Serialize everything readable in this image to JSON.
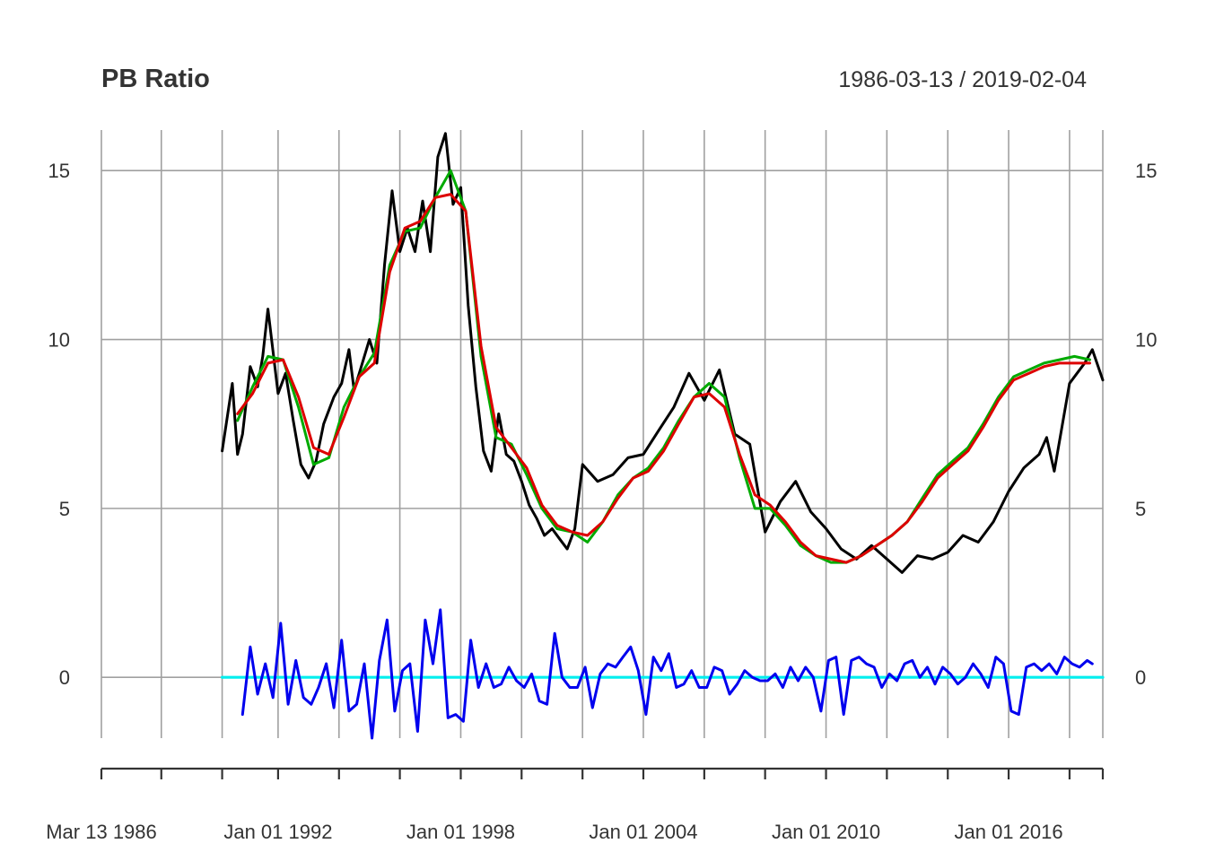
{
  "chart_data": {
    "type": "line",
    "title": "PB Ratio",
    "date_range": "1986-03-13 / 2019-02-04",
    "x_start": "1986-03-13",
    "x_end": "2019-02-04",
    "xlim": [
      "1986-03-13",
      "2019-02-04"
    ],
    "ylim": [
      -1.8,
      16.2
    ],
    "y_ticks": [
      0,
      5,
      10,
      15
    ],
    "y_tick_labels": [
      "0",
      "5",
      "10",
      "15"
    ],
    "x_tick_dates": [
      "1986-03-13",
      "1992-01-01",
      "1998-01-01",
      "2004-01-01",
      "2010-01-01",
      "2016-01-01"
    ],
    "x_tick_labels": [
      "Mar 13 1986",
      "Jan 01 1992",
      "Jan 01 1998",
      "Jan 01 2004",
      "Jan 01 2010",
      "Jan 01 2016"
    ],
    "x_minor_tick_dates": [
      "1988-03-01",
      "1990-03-01",
      "1994-01-01",
      "1996-01-01",
      "2000-01-01",
      "2002-01-01",
      "2006-01-01",
      "2008-01-01",
      "2012-01-01",
      "2014-01-01",
      "2018-01-01",
      "2019-02-04"
    ],
    "grid": true,
    "grid_x_dates": [
      "1986-03-13",
      "1988-03-01",
      "1990-03-01",
      "1992-01-01",
      "1994-01-01",
      "1996-01-01",
      "1998-01-01",
      "2000-01-01",
      "2002-01-01",
      "2004-01-01",
      "2006-01-01",
      "2008-01-01",
      "2010-01-01",
      "2012-01-01",
      "2014-01-01",
      "2016-01-01",
      "2018-01-01",
      "2019-02-04"
    ],
    "series": [
      {
        "color": "#000000",
        "x": [
          "1990-03-01",
          "1990-07-01",
          "1990-09-01",
          "1990-11-01",
          "1991-02-01",
          "1991-05-01",
          "1991-07-01",
          "1991-09-01",
          "1992-01-01",
          "1992-04-01",
          "1992-07-01",
          "1992-10-01",
          "1993-01-01",
          "1993-04-01",
          "1993-07-01",
          "1993-11-01",
          "1994-02-01",
          "1994-05-01",
          "1994-07-01",
          "1994-09-01",
          "1995-01-01",
          "1995-04-01",
          "1995-07-01",
          "1995-10-01",
          "1996-01-01",
          "1996-04-01",
          "1996-07-01",
          "1996-10-01",
          "1997-01-01",
          "1997-04-01",
          "1997-07-01",
          "1997-10-01",
          "1998-01-01",
          "1998-04-01",
          "1998-07-01",
          "1998-10-01",
          "1999-01-01",
          "1999-04-01",
          "1999-07-01",
          "1999-10-01",
          "2000-01-01",
          "2000-04-01",
          "2000-07-01",
          "2000-10-01",
          "2001-01-01",
          "2001-04-01",
          "2001-07-01",
          "2001-10-01",
          "2002-01-01",
          "2002-07-01",
          "2003-01-01",
          "2003-07-01",
          "2004-01-01",
          "2004-07-01",
          "2005-01-01",
          "2005-07-01",
          "2006-01-01",
          "2006-07-01",
          "2007-01-01",
          "2007-07-01",
          "2008-01-01",
          "2008-07-01",
          "2009-01-01",
          "2009-07-01",
          "2010-01-01",
          "2010-07-01",
          "2011-01-01",
          "2011-07-01",
          "2012-01-01",
          "2012-07-01",
          "2013-01-01",
          "2013-07-01",
          "2014-01-01",
          "2014-07-01",
          "2015-01-01",
          "2015-07-01",
          "2016-01-01",
          "2016-07-01",
          "2017-01-01",
          "2017-04-01",
          "2017-07-01",
          "2017-10-01",
          "2018-01-01",
          "2018-04-01",
          "2018-07-01",
          "2018-10-01",
          "2019-02-04"
        ],
        "values": [
          6.7,
          8.7,
          6.6,
          7.2,
          9.2,
          8.6,
          9.5,
          10.9,
          8.4,
          9.0,
          7.6,
          6.3,
          5.9,
          6.4,
          7.5,
          8.3,
          8.7,
          9.7,
          8.5,
          9.0,
          10.0,
          9.3,
          12.2,
          14.4,
          12.6,
          13.3,
          12.6,
          14.1,
          12.6,
          15.4,
          16.1,
          14.0,
          14.5,
          11.0,
          8.6,
          6.7,
          6.1,
          7.8,
          6.6,
          6.4,
          5.8,
          5.1,
          4.7,
          4.2,
          4.4,
          4.1,
          3.8,
          4.4,
          6.3,
          5.8,
          6.0,
          6.5,
          6.6,
          7.3,
          8.0,
          9.0,
          8.2,
          9.1,
          7.2,
          6.9,
          4.3,
          5.2,
          5.8,
          4.9,
          4.4,
          3.8,
          3.5,
          3.9,
          3.5,
          3.1,
          3.6,
          3.5,
          3.7,
          4.2,
          4.0,
          4.6,
          5.5,
          6.2,
          6.6,
          7.1,
          6.1,
          7.4,
          8.7,
          9.0,
          9.3,
          9.7,
          8.8
        ]
      },
      {
        "color": "#00aa00",
        "x": [
          "1990-09-01",
          "1991-03-01",
          "1991-09-01",
          "1992-03-01",
          "1992-09-01",
          "1993-03-01",
          "1993-09-01",
          "1994-03-01",
          "1994-09-01",
          "1995-03-01",
          "1995-09-01",
          "1996-03-01",
          "1996-09-01",
          "1997-03-01",
          "1997-09-01",
          "1998-03-01",
          "1998-09-01",
          "1999-03-01",
          "1999-09-01",
          "2000-03-01",
          "2000-09-01",
          "2001-03-01",
          "2001-09-01",
          "2002-03-01",
          "2002-09-01",
          "2003-03-01",
          "2003-09-01",
          "2004-03-01",
          "2004-09-01",
          "2005-03-01",
          "2005-09-01",
          "2006-03-01",
          "2006-09-01",
          "2007-03-01",
          "2007-09-01",
          "2008-03-01",
          "2008-09-01",
          "2009-03-01",
          "2009-09-01",
          "2010-03-01",
          "2010-09-01",
          "2011-03-01",
          "2011-09-01",
          "2012-03-01",
          "2012-09-01",
          "2013-03-01",
          "2013-09-01",
          "2014-03-01",
          "2014-09-01",
          "2015-03-01",
          "2015-09-01",
          "2016-03-01",
          "2016-09-01",
          "2017-03-01",
          "2017-09-01",
          "2018-03-01",
          "2018-09-01"
        ],
        "values": [
          7.6,
          8.6,
          9.5,
          9.4,
          8.0,
          6.3,
          6.5,
          8.0,
          8.9,
          9.6,
          12.2,
          13.2,
          13.3,
          14.2,
          15.0,
          13.8,
          9.5,
          7.1,
          6.9,
          6.0,
          5.0,
          4.4,
          4.3,
          4.0,
          4.6,
          5.4,
          5.9,
          6.2,
          6.8,
          7.6,
          8.3,
          8.7,
          8.3,
          6.5,
          5.0,
          5.0,
          4.5,
          3.9,
          3.6,
          3.4,
          3.4,
          3.6,
          3.9,
          4.2,
          4.6,
          5.3,
          6.0,
          6.4,
          6.8,
          7.5,
          8.3,
          8.9,
          9.1,
          9.3,
          9.4,
          9.5,
          9.4
        ]
      },
      {
        "color": "#dd0000",
        "x": [
          "1990-09-01",
          "1991-03-01",
          "1991-09-01",
          "1992-03-01",
          "1992-09-01",
          "1993-03-01",
          "1993-09-01",
          "1994-03-01",
          "1994-09-01",
          "1995-03-01",
          "1995-09-01",
          "1996-03-01",
          "1996-09-01",
          "1997-03-01",
          "1997-09-01",
          "1998-03-01",
          "1998-09-01",
          "1999-03-01",
          "1999-09-01",
          "2000-03-01",
          "2000-09-01",
          "2001-03-01",
          "2001-09-01",
          "2002-03-01",
          "2002-09-01",
          "2003-03-01",
          "2003-09-01",
          "2004-03-01",
          "2004-09-01",
          "2005-03-01",
          "2005-09-01",
          "2006-03-01",
          "2006-09-01",
          "2007-03-01",
          "2007-09-01",
          "2008-03-01",
          "2008-09-01",
          "2009-03-01",
          "2009-09-01",
          "2010-03-01",
          "2010-09-01",
          "2011-03-01",
          "2011-09-01",
          "2012-03-01",
          "2012-09-01",
          "2013-03-01",
          "2013-09-01",
          "2014-03-01",
          "2014-09-01",
          "2015-03-01",
          "2015-09-01",
          "2016-03-01",
          "2016-09-01",
          "2017-03-01",
          "2017-09-01",
          "2018-03-01",
          "2018-09-01"
        ],
        "values": [
          7.8,
          8.4,
          9.3,
          9.4,
          8.3,
          6.8,
          6.6,
          7.7,
          8.9,
          9.3,
          12.0,
          13.3,
          13.5,
          14.2,
          14.3,
          13.8,
          9.8,
          7.4,
          6.8,
          6.2,
          5.1,
          4.5,
          4.3,
          4.2,
          4.6,
          5.3,
          5.9,
          6.1,
          6.7,
          7.5,
          8.3,
          8.4,
          8.0,
          6.6,
          5.4,
          5.1,
          4.6,
          4.0,
          3.6,
          3.5,
          3.4,
          3.6,
          3.9,
          4.2,
          4.6,
          5.2,
          5.9,
          6.3,
          6.7,
          7.4,
          8.2,
          8.8,
          9.0,
          9.2,
          9.3,
          9.3,
          9.3
        ]
      },
      {
        "color": "#0000ee",
        "x": [
          "1990-11-01",
          "1991-02-01",
          "1991-05-01",
          "1991-08-01",
          "1991-11-01",
          "1992-02-01",
          "1992-05-01",
          "1992-08-01",
          "1992-11-01",
          "1993-02-01",
          "1993-05-01",
          "1993-08-01",
          "1993-11-01",
          "1994-02-01",
          "1994-05-01",
          "1994-08-01",
          "1994-11-01",
          "1995-02-01",
          "1995-05-01",
          "1995-08-01",
          "1995-11-01",
          "1996-02-01",
          "1996-05-01",
          "1996-08-01",
          "1996-11-01",
          "1997-02-01",
          "1997-05-01",
          "1997-08-01",
          "1997-11-01",
          "1998-02-01",
          "1998-05-01",
          "1998-08-01",
          "1998-11-01",
          "1999-02-01",
          "1999-05-01",
          "1999-08-01",
          "1999-11-01",
          "2000-02-01",
          "2000-05-01",
          "2000-08-01",
          "2000-11-01",
          "2001-02-01",
          "2001-05-01",
          "2001-08-01",
          "2001-11-01",
          "2002-02-01",
          "2002-05-01",
          "2002-08-01",
          "2002-11-01",
          "2003-02-01",
          "2003-05-01",
          "2003-08-01",
          "2003-11-01",
          "2004-02-01",
          "2004-05-01",
          "2004-08-01",
          "2004-11-01",
          "2005-02-01",
          "2005-05-01",
          "2005-08-01",
          "2005-11-01",
          "2006-02-01",
          "2006-05-01",
          "2006-08-01",
          "2006-11-01",
          "2007-02-01",
          "2007-05-01",
          "2007-08-01",
          "2007-11-01",
          "2008-02-01",
          "2008-05-01",
          "2008-08-01",
          "2008-11-01",
          "2009-02-01",
          "2009-05-01",
          "2009-08-01",
          "2009-11-01",
          "2010-02-01",
          "2010-05-01",
          "2010-08-01",
          "2010-11-01",
          "2011-02-01",
          "2011-05-01",
          "2011-08-01",
          "2011-11-01",
          "2012-02-01",
          "2012-05-01",
          "2012-08-01",
          "2012-11-01",
          "2013-02-01",
          "2013-05-01",
          "2013-08-01",
          "2013-11-01",
          "2014-02-01",
          "2014-05-01",
          "2014-08-01",
          "2014-11-01",
          "2015-02-01",
          "2015-05-01",
          "2015-08-01",
          "2015-11-01",
          "2016-02-01",
          "2016-05-01",
          "2016-08-01",
          "2016-11-01",
          "2017-02-01",
          "2017-05-01",
          "2017-08-01",
          "2017-11-01",
          "2018-02-01",
          "2018-05-01",
          "2018-08-01",
          "2018-10-01"
        ],
        "values": [
          -1.1,
          0.9,
          -0.5,
          0.4,
          -0.6,
          1.6,
          -0.8,
          0.5,
          -0.6,
          -0.8,
          -0.3,
          0.4,
          -0.9,
          1.1,
          -1.0,
          -0.8,
          0.4,
          -1.8,
          0.5,
          1.7,
          -1.0,
          0.2,
          0.4,
          -1.6,
          1.7,
          0.4,
          2.0,
          -1.2,
          -1.1,
          -1.3,
          1.1,
          -0.3,
          0.4,
          -0.3,
          -0.2,
          0.3,
          -0.1,
          -0.3,
          0.1,
          -0.7,
          -0.8,
          1.3,
          0.0,
          -0.3,
          -0.3,
          0.3,
          -0.9,
          0.1,
          0.4,
          0.3,
          0.6,
          0.9,
          0.2,
          -1.1,
          0.6,
          0.2,
          0.7,
          -0.3,
          -0.2,
          0.2,
          -0.3,
          -0.3,
          0.3,
          0.2,
          -0.5,
          -0.2,
          0.2,
          0.0,
          -0.1,
          -0.1,
          0.1,
          -0.3,
          0.3,
          -0.1,
          0.3,
          0.0,
          -1.0,
          0.5,
          0.6,
          -1.1,
          0.5,
          0.6,
          0.4,
          0.3,
          -0.3,
          0.1,
          -0.1,
          0.4,
          0.5,
          0.0,
          0.3,
          -0.2,
          0.3,
          0.1,
          -0.2,
          0.0,
          0.4,
          0.1,
          -0.3,
          0.6,
          0.4,
          -1.0,
          -1.1,
          0.3,
          0.4,
          0.2,
          0.4,
          0.1,
          0.6,
          0.4,
          0.3,
          0.5,
          0.4
        ]
      },
      {
        "color": "#00eeee",
        "x": [
          "1990-03-01",
          "2019-02-04"
        ],
        "values": [
          0,
          0
        ]
      }
    ]
  }
}
